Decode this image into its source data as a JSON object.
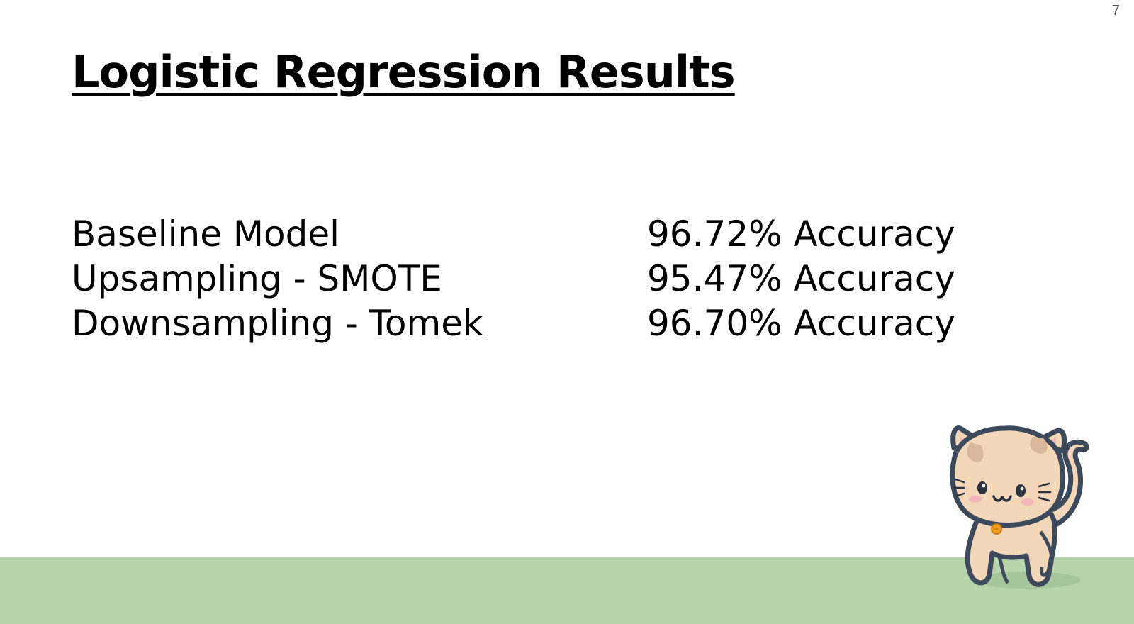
{
  "slide": {
    "page_number": "7",
    "title": "Logistic Regression Results",
    "results": [
      {
        "method": "Baseline Model",
        "score": "96.72% Accuracy"
      },
      {
        "method": "Upsampling - SMOTE",
        "score": "95.47% Accuracy"
      },
      {
        "method": "Downsampling - Tomek",
        "score": "96.70% Accuracy"
      }
    ]
  },
  "colors": {
    "ground": "#b6d5ab",
    "cat_fur": "#f2d7b8",
    "cat_outline": "#3d4a5c",
    "cat_patch": "#d9b89c",
    "cat_cheek": "#f4b6b6",
    "bell": "#f0a020"
  },
  "decor": {
    "illustration": "cat-icon"
  }
}
